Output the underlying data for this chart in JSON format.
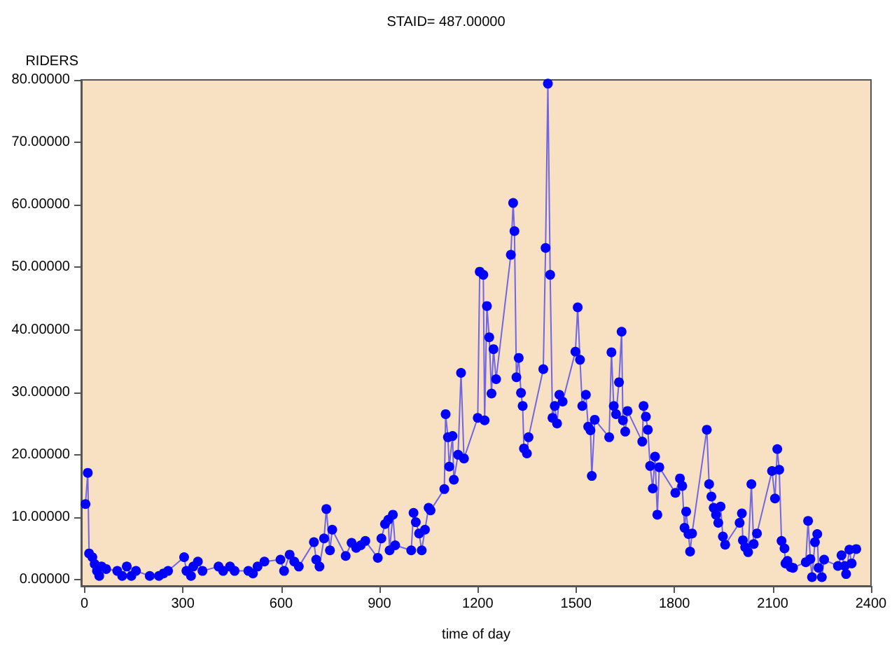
{
  "chart_data": {
    "type": "line",
    "title": "STAID= 487.00000",
    "xlabel": "time of day",
    "ylabel": "RIDERS",
    "marker": "circle",
    "grid": false,
    "xlim": [
      -10,
      2400
    ],
    "xticks": [
      0,
      300,
      600,
      900,
      1200,
      1500,
      1800,
      2100,
      2400
    ],
    "ylim": [
      -1,
      80
    ],
    "yticks": [
      {
        "value": 0,
        "label": "0.00000"
      },
      {
        "value": 10,
        "label": "10.00000"
      },
      {
        "value": 20,
        "label": "20.00000"
      },
      {
        "value": 30,
        "label": "30.00000"
      },
      {
        "value": 40,
        "label": "40.00000"
      },
      {
        "value": 50,
        "label": "50.00000"
      },
      {
        "value": 60,
        "label": "60.00000"
      },
      {
        "value": 70,
        "label": "70.00000"
      },
      {
        "value": 80,
        "label": "80.00000"
      }
    ],
    "x": [
      3,
      10,
      14,
      24,
      31,
      38,
      45,
      52,
      66,
      100,
      115,
      129,
      143,
      157,
      199,
      227,
      241,
      255,
      304,
      311,
      325,
      332,
      346,
      360,
      409,
      423,
      444,
      458,
      500,
      514,
      528,
      549,
      598,
      609,
      626,
      640,
      654,
      700,
      707,
      717,
      731,
      738,
      749,
      756,
      797,
      815,
      829,
      843,
      857,
      895,
      906,
      917,
      927,
      931,
      941,
      948,
      997,
      1004,
      1011,
      1021,
      1029,
      1039,
      1050,
      1056,
      1098,
      1102,
      1109,
      1113,
      1123,
      1127,
      1140,
      1149,
      1158,
      1200,
      1206,
      1217,
      1221,
      1228,
      1235,
      1242,
      1248,
      1256,
      1301,
      1308,
      1312,
      1318,
      1325,
      1332,
      1337,
      1341,
      1350,
      1355,
      1400,
      1407,
      1414,
      1421,
      1428,
      1435,
      1442,
      1449,
      1459,
      1498,
      1505,
      1512,
      1519,
      1530,
      1537,
      1544,
      1548,
      1557,
      1601,
      1608,
      1615,
      1622,
      1631,
      1639,
      1643,
      1650,
      1657,
      1702,
      1706,
      1713,
      1719,
      1726,
      1734,
      1741,
      1748,
      1754,
      1803,
      1817,
      1824,
      1831,
      1836,
      1843,
      1848,
      1854,
      1899,
      1906,
      1913,
      1920,
      1927,
      1934,
      1941,
      1948,
      1955,
      1999,
      2006,
      2009,
      2016,
      2025,
      2035,
      2042,
      2052,
      2098,
      2107,
      2114,
      2120,
      2127,
      2136,
      2139,
      2145,
      2155,
      2162,
      2201,
      2208,
      2215,
      2220,
      2229,
      2236,
      2240,
      2250,
      2257,
      2299,
      2310,
      2320,
      2324,
      2334,
      2341,
      2355
    ],
    "series": [
      {
        "color": "#0000ff",
        "values": [
          12.1,
          17.1,
          4.2,
          3.6,
          2.5,
          1.4,
          0.6,
          2.1,
          1.7,
          1.4,
          0.6,
          2.1,
          0.6,
          1.4,
          0.6,
          0.6,
          1.0,
          1.4,
          3.6,
          1.4,
          0.6,
          2.1,
          2.9,
          1.4,
          2.1,
          1.4,
          2.1,
          1.4,
          1.4,
          1.0,
          2.1,
          2.9,
          3.2,
          1.4,
          4.0,
          2.9,
          2.1,
          6.0,
          3.2,
          2.1,
          6.6,
          11.3,
          4.7,
          8.0,
          3.8,
          5.9,
          5.1,
          5.5,
          6.2,
          3.5,
          6.6,
          8.9,
          9.6,
          4.7,
          10.4,
          5.5,
          4.7,
          10.7,
          9.2,
          7.4,
          4.7,
          8.0,
          11.5,
          11.1,
          14.5,
          26.5,
          22.8,
          18.1,
          23.0,
          16.0,
          20.0,
          33.1,
          19.4,
          25.9,
          49.3,
          48.8,
          25.5,
          43.8,
          38.8,
          29.8,
          36.9,
          32.1,
          52.0,
          60.3,
          55.8,
          32.4,
          35.5,
          29.9,
          27.8,
          21.0,
          20.2,
          22.8,
          33.7,
          53.1,
          79.4,
          48.8,
          25.9,
          27.8,
          25.0,
          29.6,
          28.5,
          36.5,
          43.6,
          35.2,
          27.8,
          29.6,
          24.5,
          23.9,
          16.6,
          25.6,
          22.8,
          36.4,
          27.8,
          26.5,
          31.6,
          39.7,
          25.5,
          23.7,
          27.0,
          22.1,
          27.8,
          26.1,
          24.0,
          18.2,
          14.6,
          19.7,
          10.4,
          18.0,
          13.9,
          16.2,
          15.0,
          8.3,
          10.9,
          7.3,
          4.5,
          7.4,
          24.0,
          15.3,
          13.3,
          11.5,
          10.4,
          9.1,
          11.7,
          6.9,
          5.6,
          9.1,
          10.6,
          6.3,
          5.2,
          4.4,
          15.3,
          5.7,
          7.4,
          17.4,
          13.0,
          20.9,
          17.6,
          6.2,
          5.0,
          2.6,
          3.0,
          2.0,
          1.9,
          2.8,
          9.4,
          3.3,
          0.4,
          6.0,
          7.3,
          1.9,
          0.4,
          3.2,
          2.2,
          3.9,
          2.2,
          0.9,
          4.8,
          2.6,
          4.9
        ]
      }
    ]
  }
}
